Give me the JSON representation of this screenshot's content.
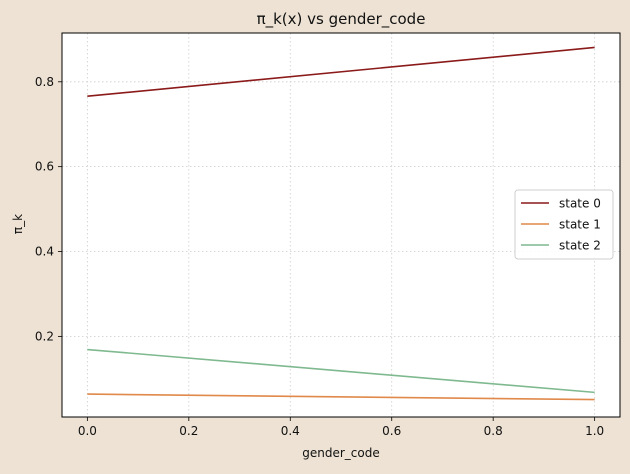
{
  "chart_data": {
    "type": "line",
    "title": "π_k(x) vs gender_code",
    "xlabel": "gender_code",
    "ylabel": "π_k",
    "xlim": [
      -0.05,
      1.05
    ],
    "ylim": [
      0.01,
      0.915
    ],
    "xticks": [
      0.0,
      0.2,
      0.4,
      0.6,
      0.8,
      1.0
    ],
    "xtick_labels": [
      "0.0",
      "0.2",
      "0.4",
      "0.6",
      "0.8",
      "1.0"
    ],
    "yticks": [
      0.2,
      0.4,
      0.6,
      0.8
    ],
    "ytick_labels": [
      "0.2",
      "0.4",
      "0.6",
      "0.8"
    ],
    "grid": true,
    "legend_position": "center-right",
    "x": [
      0.0,
      1.0
    ],
    "series": [
      {
        "name": "state 0",
        "values": [
          0.766,
          0.881
        ],
        "color": "#8b1a1a"
      },
      {
        "name": "state 1",
        "values": [
          0.064,
          0.051
        ],
        "color": "#e0894a"
      },
      {
        "name": "state 2",
        "values": [
          0.169,
          0.068
        ],
        "color": "#7fb98f"
      }
    ],
    "colors": {
      "background": "#ede2d3",
      "plot_background": "#ffffff",
      "grid": "#cccccc"
    }
  }
}
